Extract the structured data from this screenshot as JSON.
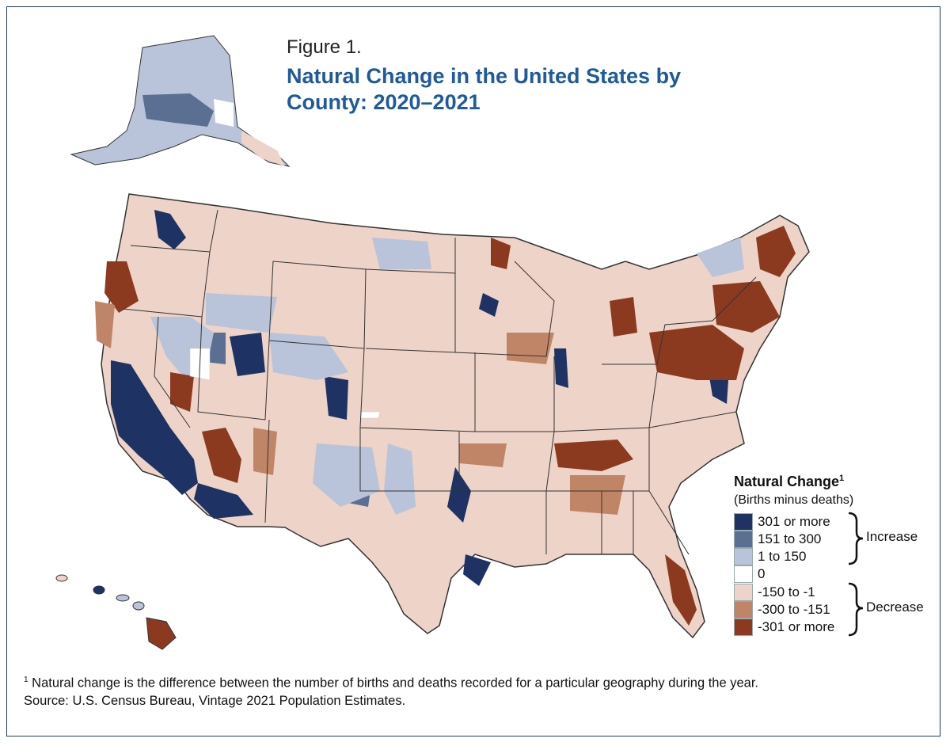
{
  "figure": {
    "label": "Figure 1.",
    "title": "Natural Change in the United States by County: 2020–2021"
  },
  "legend": {
    "title": "Natural Change",
    "title_marker": "1",
    "subtitle": "(Births minus deaths)",
    "items": [
      {
        "label": "301 or more",
        "color": "#1e3263"
      },
      {
        "label": "151 to 300",
        "color": "#5b6f93"
      },
      {
        "label": "1 to 150",
        "color": "#b9c3d9"
      },
      {
        "label": "0",
        "color": "#ffffff"
      },
      {
        "label": "-150 to -1",
        "color": "#edd3c8"
      },
      {
        "label": "-300 to -151",
        "color": "#c08566"
      },
      {
        "label": "-301 or more",
        "color": "#8c3a1f"
      }
    ],
    "groups": {
      "increase": "Increase",
      "decrease": "Decrease"
    }
  },
  "footnote": {
    "marker": "1",
    "note": "Natural change is the difference between the number of births and deaths recorded for a particular geography during the year.",
    "source": "Source: U.S. Census Bureau, Vintage 2021 Population Estimates."
  },
  "colors": {
    "frame": "#1f3a63",
    "title": "#1f5a9a",
    "state_border": "#333333"
  }
}
